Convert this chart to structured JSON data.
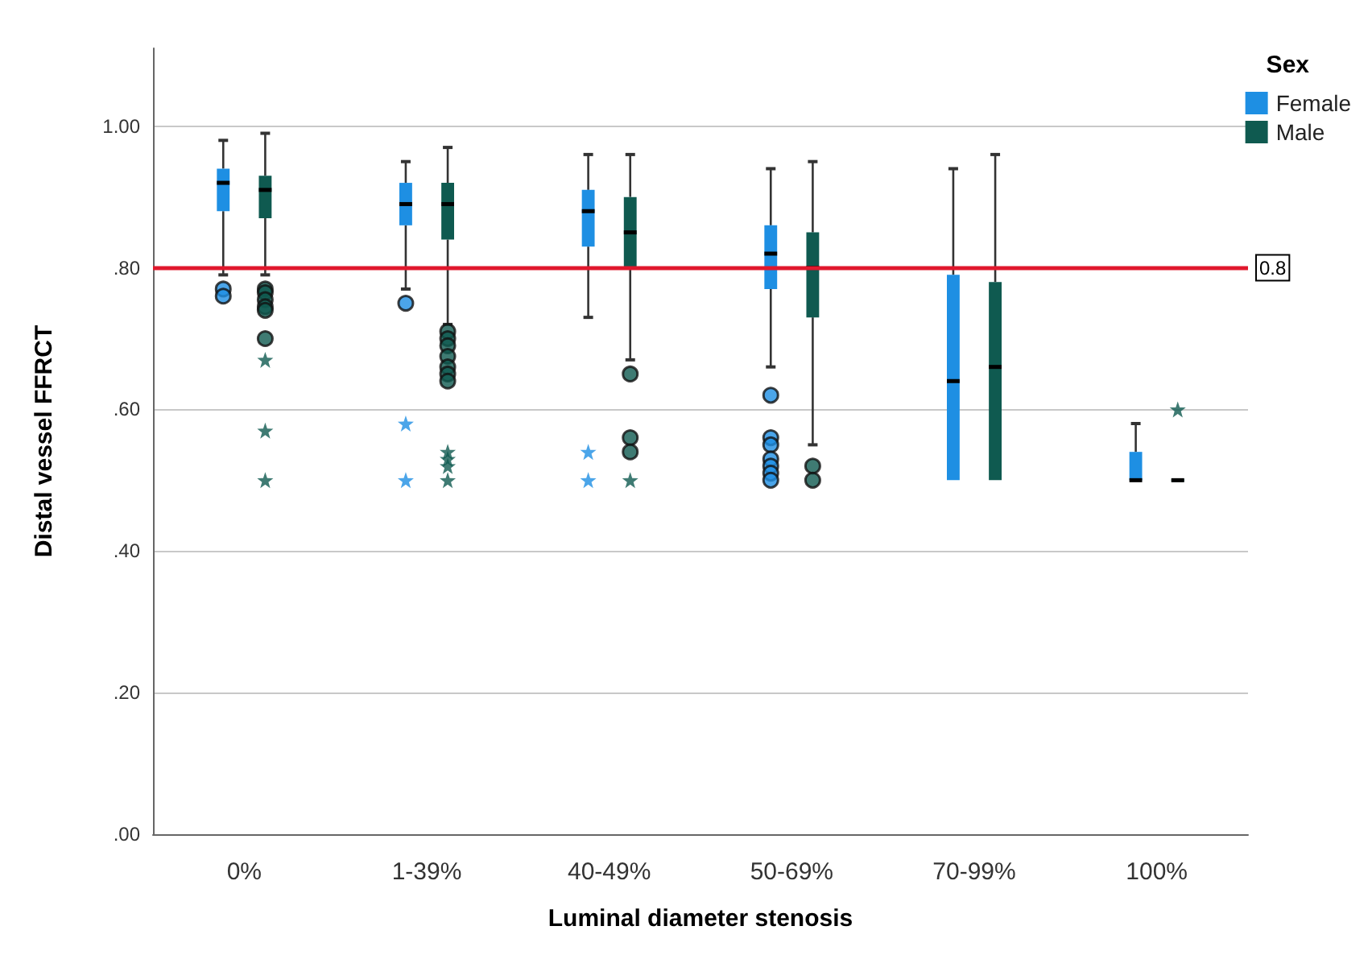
{
  "chart_data": {
    "type": "box",
    "xlabel": "Luminal diameter stenosis",
    "ylabel": "Distal vessel FFRCT",
    "legend_title": "Sex",
    "legend": "top right",
    "grid": "y",
    "categories": [
      "0%",
      "1-39%",
      "40-49%",
      "50-69%",
      "70-99%",
      "100%"
    ],
    "ylim": [
      0,
      1.11
    ],
    "yticks": [
      {
        "value": 0,
        "label": ".00"
      },
      {
        "value": 0.2,
        "label": ".20"
      },
      {
        "value": 0.4,
        "label": ".40"
      },
      {
        "value": 0.6,
        "label": ".60"
      },
      {
        "value": 0.8,
        "label": ".80"
      },
      {
        "value": 1,
        "label": "1.00"
      }
    ],
    "ref_lines": [
      {
        "axis": "y",
        "value": 0.8,
        "label": "0.8",
        "color": "#e0182d"
      }
    ],
    "series": [
      {
        "name": "Female",
        "color": "#1e8fe3",
        "boxes": [
          {
            "low": 0.79,
            "q1": 0.88,
            "median": 0.92,
            "q3": 0.94,
            "high": 0.98,
            "outliers": [
              0.77,
              0.76
            ]
          },
          {
            "low": 0.77,
            "q1": 0.86,
            "median": 0.89,
            "q3": 0.92,
            "high": 0.95,
            "outliers": [
              0.75
            ]
          },
          {
            "low": 0.73,
            "q1": 0.83,
            "median": 0.88,
            "q3": 0.91,
            "high": 0.96
          },
          {
            "low": 0.66,
            "q1": 0.77,
            "median": 0.82,
            "q3": 0.86,
            "high": 0.94,
            "outliers": [
              0.62,
              0.56,
              0.55,
              0.53,
              0.52,
              0.51,
              0.5
            ]
          },
          {
            "low": 0.5,
            "q1": 0.5,
            "median": 0.64,
            "q3": 0.79,
            "high": 0.94
          },
          {
            "low": 0.5,
            "q1": 0.5,
            "median": 0.5,
            "q3": 0.54,
            "high": 0.58
          }
        ]
      },
      {
        "name": "Male",
        "color": "#0f5a50",
        "boxes": [
          {
            "low": 0.79,
            "q1": 0.87,
            "median": 0.91,
            "q3": 0.93,
            "high": 0.99,
            "outliers": [
              0.77,
              0.765,
              0.755,
              0.745,
              0.74,
              0.7
            ]
          },
          {
            "low": 0.72,
            "q1": 0.84,
            "median": 0.89,
            "q3": 0.92,
            "high": 0.97,
            "outliers": [
              0.71,
              0.7,
              0.69,
              0.675,
              0.66,
              0.65,
              0.64
            ]
          },
          {
            "low": 0.67,
            "q1": 0.8,
            "median": 0.85,
            "q3": 0.9,
            "high": 0.96,
            "outliers": [
              0.65,
              0.56,
              0.54
            ]
          },
          {
            "low": 0.55,
            "q1": 0.73,
            "median": 0.8,
            "q3": 0.85,
            "high": 0.95,
            "outliers": [
              0.52,
              0.5
            ]
          },
          {
            "low": 0.5,
            "q1": 0.5,
            "median": 0.66,
            "q3": 0.78,
            "high": 0.96
          },
          {
            "low": 0.5,
            "q1": 0.5,
            "median": 0.5,
            "q3": 0.5,
            "high": 0.5
          }
        ]
      },
      {
        "type": "scatter",
        "marker": "star",
        "color": "#1e8fe3",
        "x": [
          "1-39%",
          "1-39%",
          "40-49%",
          "40-49%"
        ],
        "values": [
          0.58,
          0.5,
          0.54,
          0.5
        ]
      },
      {
        "type": "scatter",
        "marker": "star",
        "color": "#0f5a50",
        "x": [
          "0%",
          "0%",
          "0%",
          "1-39%",
          "1-39%",
          "1-39%",
          "1-39%",
          "40-49%",
          "100%"
        ],
        "values": [
          0.67,
          0.57,
          0.5,
          0.54,
          0.53,
          0.52,
          0.5,
          0.5,
          0.6
        ]
      }
    ]
  }
}
